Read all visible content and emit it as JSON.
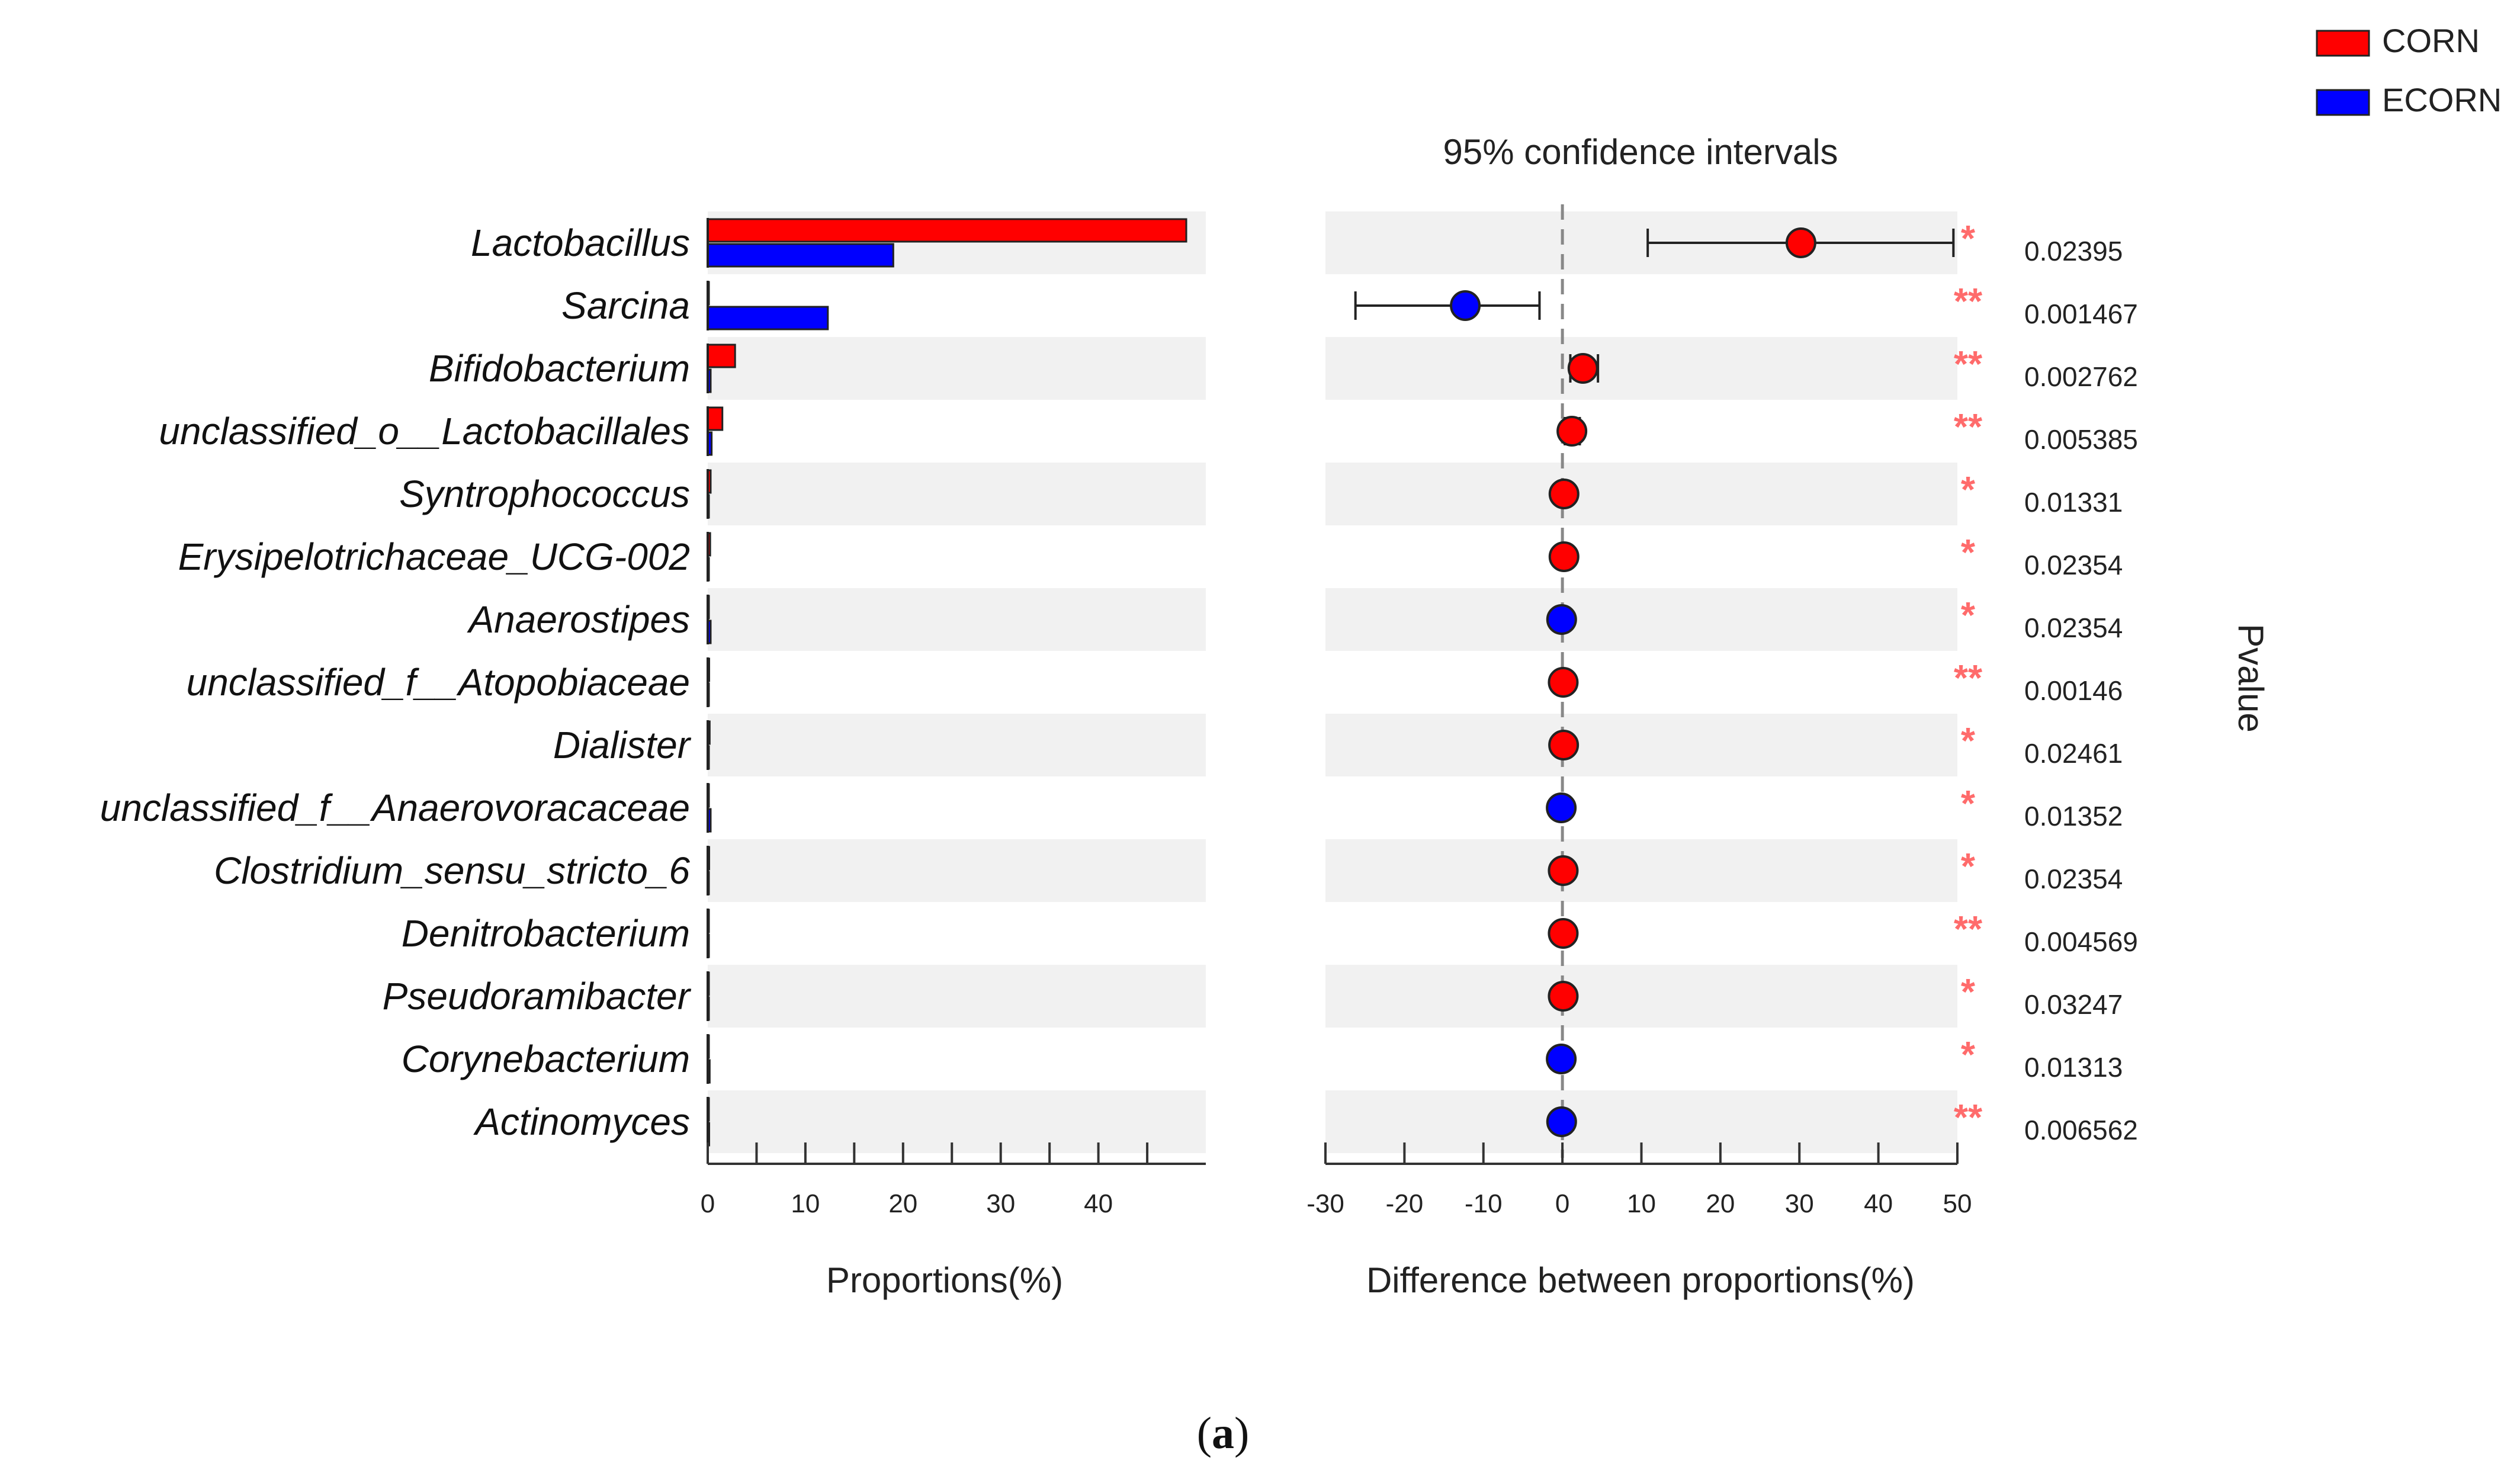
{
  "chart_data": {
    "type": "bar",
    "panel_label_open": "(",
    "panel_label_letter": "a",
    "panel_label_close": ")",
    "legend": [
      {
        "name": "CORN",
        "color": "#ff0000"
      },
      {
        "name": "ECORN",
        "color": "#0000ff"
      }
    ],
    "categories": [
      "Lactobacillus",
      "Sarcina",
      "Bifidobacterium",
      "unclassified_o__Lactobacillales",
      "Syntrophococcus",
      "Erysipelotrichaceae_UCG-002",
      "Anaerostipes",
      "unclassified_f__Atopobiaceae",
      "Dialister",
      "unclassified_f__Anaerovoracaceae",
      "Clostridium_sensu_stricto_6",
      "Denitrobacterium",
      "Pseudoramibacter",
      "Corynebacterium",
      "Actinomyces"
    ],
    "proportions": {
      "xlabel": "Proportions(%)",
      "xlim": [
        0,
        51
      ],
      "ticks": [
        0,
        10,
        20,
        30,
        40
      ],
      "minor_ticks": [
        5,
        15,
        25,
        35,
        45
      ],
      "series": [
        {
          "name": "CORN",
          "color": "#ff0000",
          "values": [
            49,
            0.1,
            2.8,
            1.5,
            0.3,
            0.25,
            0.1,
            0.15,
            0.2,
            0.1,
            0.15,
            0.1,
            0.1,
            0.05,
            0.05
          ]
        },
        {
          "name": "ECORN",
          "color": "#0000ff",
          "values": [
            19,
            12.3,
            0.3,
            0.4,
            0.1,
            0.1,
            0.3,
            0.05,
            0.05,
            0.3,
            0.05,
            0.02,
            0.03,
            0.2,
            0.15
          ]
        }
      ]
    },
    "difference": {
      "title": "95% confidence intervals",
      "xlabel": "Difference between proportions(%)",
      "xlim": [
        -30,
        50
      ],
      "ticks": [
        -30,
        -20,
        -10,
        0,
        10,
        20,
        30,
        40,
        50
      ],
      "estimates": [
        30.2,
        -12.3,
        2.6,
        1.2,
        0.2,
        0.2,
        -0.1,
        0.1,
        0.15,
        -0.15,
        0.1,
        0.1,
        0.1,
        -0.15,
        -0.1
      ],
      "ci_low": [
        10.8,
        -26.2,
        1.0,
        0.3,
        0.0,
        0.0,
        -0.3,
        0.0,
        0.0,
        -0.3,
        0.0,
        0.0,
        0.0,
        -0.3,
        -0.3
      ],
      "ci_high": [
        49.5,
        -2.9,
        4.5,
        2.2,
        0.4,
        0.4,
        0.1,
        0.3,
        0.3,
        0.0,
        0.2,
        0.2,
        0.2,
        0.0,
        0.1
      ],
      "point_color_by_group": {
        "CORN": "#ff0000",
        "ECORN": "#0000ff"
      },
      "groups": [
        "CORN",
        "ECORN",
        "CORN",
        "CORN",
        "CORN",
        "CORN",
        "ECORN",
        "CORN",
        "CORN",
        "ECORN",
        "CORN",
        "CORN",
        "CORN",
        "ECORN",
        "ECORN"
      ]
    },
    "pvalue": {
      "label": "Pvalue",
      "values": [
        "0.02395",
        "0.001467",
        "0.002762",
        "0.005385",
        "0.01331",
        "0.02354",
        "0.02354",
        "0.00146",
        "0.02461",
        "0.01352",
        "0.02354",
        "0.004569",
        "0.03247",
        "0.01313",
        "0.006562"
      ],
      "stars": [
        "*",
        "**",
        "**",
        "**",
        "*",
        "*",
        "*",
        "**",
        "*",
        "*",
        "*",
        "**",
        "*",
        "*",
        "**"
      ]
    }
  }
}
